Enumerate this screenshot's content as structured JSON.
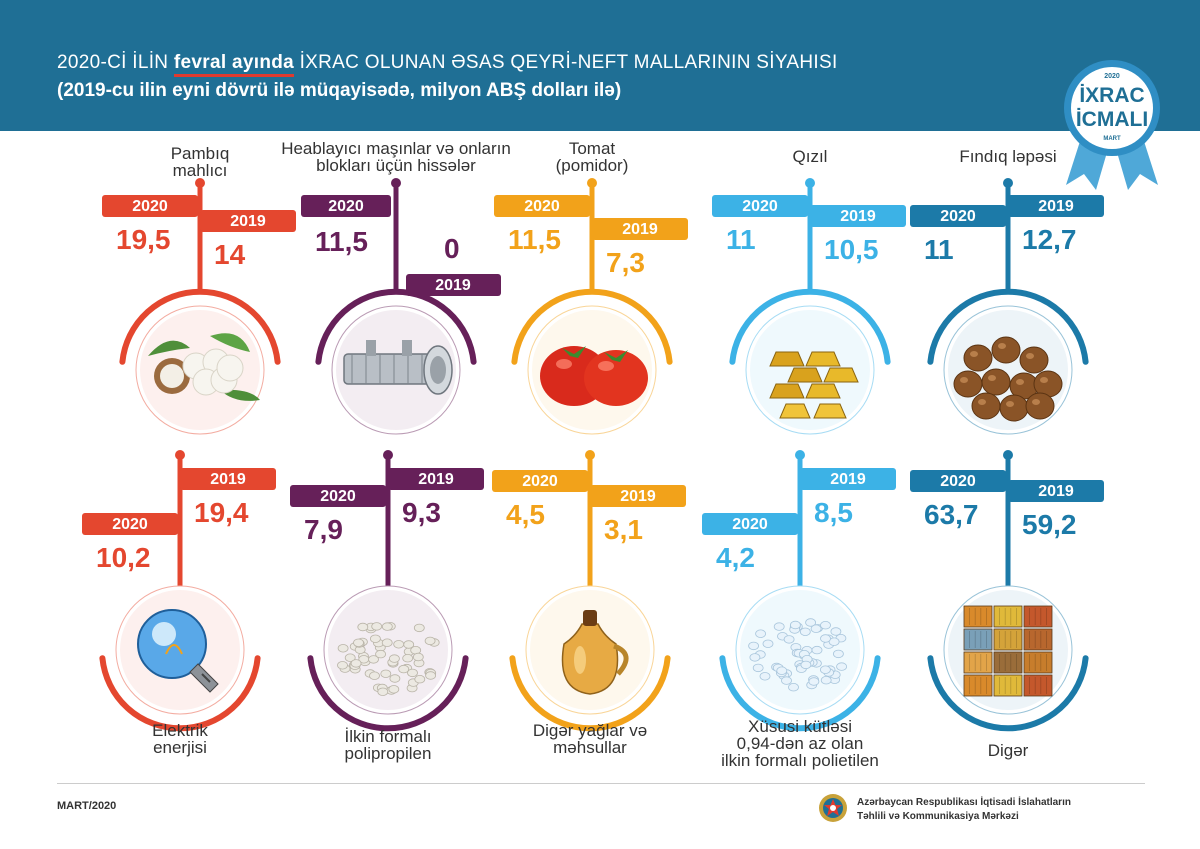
{
  "header": {
    "title_prefix": "2020-Cİ İLİN",
    "title_highlight": "fevral ayında",
    "title_suffix": "İXRAC OLUNAN ƏSAS QEYRİ-NEFT MALLARININ SİYAHISI",
    "subtitle": "(2019-cu ilin eyni dövrü ilə müqayisədə, milyon ABŞ dolları ilə)"
  },
  "badge": {
    "year": "2020",
    "line1": "İXRAC",
    "line2": "İCMALI",
    "month": "MART"
  },
  "colors": {
    "red": "#e4472f",
    "purple": "#662059",
    "orange": "#f2a21a",
    "lightblue": "#3cb2e6",
    "teal": "#1c7aa8",
    "header": "#1f6f95"
  },
  "chart_data": {
    "type": "table",
    "title": "2020-Cİ İLİN fevral ayında İXRAC OLUNAN ƏSAS QEYRİ-NEFT MALLARININ SİYAHISI",
    "subtitle": "(2019-cu ilin eyni dövrü ilə müqayisədə, milyon ABŞ dolları ilə)",
    "year_labels": [
      "2020",
      "2019"
    ],
    "items": [
      {
        "name": "Pambıq mahlıcı",
        "label_lines": [
          "Pambıq",
          "mahlıcı"
        ],
        "v2020": "19,5",
        "v2019": "14",
        "color": "#e4472f",
        "icon": "cotton-icon"
      },
      {
        "name": "Heablayıcı maşınlar və onların blokları üçün hissələr",
        "label_lines": [
          "Heablayıcı maşınlar və onların",
          "blokları üçün hissələr"
        ],
        "v2020": "11,5",
        "v2019": "0",
        "color": "#662059",
        "icon": "machine-part-icon"
      },
      {
        "name": "Tomat (pomidor)",
        "label_lines": [
          "Tomat",
          "(pomidor)"
        ],
        "v2020": "11,5",
        "v2019": "7,3",
        "color": "#f2a21a",
        "icon": "tomato-icon"
      },
      {
        "name": "Qızıl",
        "label_lines": [
          "Qızıl"
        ],
        "v2020": "11",
        "v2019": "10,5",
        "color": "#3cb2e6",
        "icon": "gold-bars-icon"
      },
      {
        "name": "Fındıq ləpəsi",
        "label_lines": [
          "Fındıq ləpəsi"
        ],
        "v2020": "11",
        "v2019": "12,7",
        "color": "#1c7aa8",
        "icon": "hazelnut-icon"
      },
      {
        "name": "Elektrik enerjisi",
        "label_lines": [
          "Elektrik",
          "enerjisi"
        ],
        "v2020": "10,2",
        "v2019": "19,4",
        "color": "#e4472f",
        "icon": "light-bulb-icon"
      },
      {
        "name": "İlkin formalı polipropilen",
        "label_lines": [
          "İlkin formalı",
          "polipropilen"
        ],
        "v2020": "7,9",
        "v2019": "9,3",
        "color": "#662059",
        "icon": "polypropylene-granules-icon"
      },
      {
        "name": "Digər yağlar və məhsullar",
        "label_lines": [
          "Digər yağlar və",
          "məhsullar"
        ],
        "v2020": "4,5",
        "v2019": "3,1",
        "color": "#f2a21a",
        "icon": "oil-jug-icon"
      },
      {
        "name": "Xüsusi kütləsi 0,94-dən az olan ilkin formalı polietilen",
        "label_lines": [
          "Xüsusi kütləsi",
          "0,94-dən az olan",
          "ilkin formalı polietilen"
        ],
        "v2020": "4,2",
        "v2019": "8,5",
        "color": "#3cb2e6",
        "icon": "polyethylene-granules-icon"
      },
      {
        "name": "Digər",
        "label_lines": [
          "Digər"
        ],
        "v2020": "63,7",
        "v2019": "59,2",
        "color": "#1c7aa8",
        "icon": "containers-icon"
      }
    ]
  },
  "footer": {
    "date": "MART/2020",
    "org_line1": "Azərbaycan Respublikası İqtisadi İslahatların",
    "org_line2": "Təhlili və Kommunikasiya Mərkəzi"
  }
}
